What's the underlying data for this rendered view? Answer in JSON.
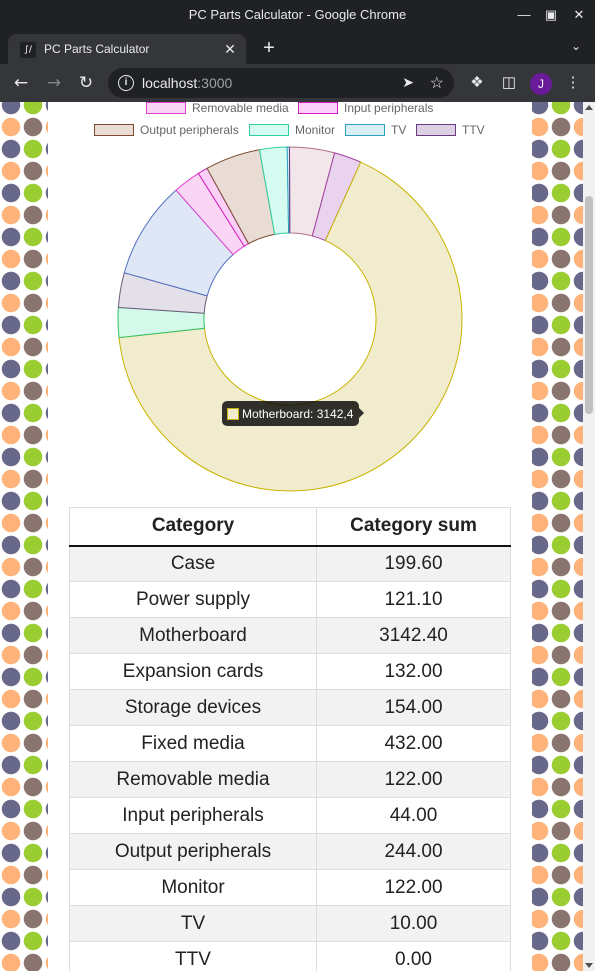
{
  "window": {
    "title": "PC Parts Calculator - Google Chrome"
  },
  "tab": {
    "title": "PC Parts Calculator",
    "favicon": "calc-icon"
  },
  "omnibox": {
    "host": "localhost",
    "port": ":3000"
  },
  "profile": {
    "initial": "J",
    "color": "#6a1b9a"
  },
  "chart_data": {
    "type": "doughnut",
    "categories": [
      "Case",
      "Power supply",
      "Motherboard",
      "Expansion cards",
      "Storage devices",
      "Fixed media",
      "Removable media",
      "Input peripherals",
      "Output peripherals",
      "Monitor",
      "TV",
      "TTV"
    ],
    "values": [
      199.6,
      121.1,
      3142.4,
      132.0,
      154.0,
      432.0,
      122.0,
      44.0,
      244.0,
      122.0,
      10.0,
      0.0
    ],
    "colors": [
      {
        "fill": "#f3e6ea",
        "border": "#b07080"
      },
      {
        "fill": "#ead3ee",
        "border": "#a040a0"
      },
      {
        "fill": "#f2ecce",
        "border": "#c8b400"
      },
      {
        "fill": "#d4f8ea",
        "border": "#30c060"
      },
      {
        "fill": "#e4e0ea",
        "border": "#6b5a7a"
      },
      {
        "fill": "#dfe6f6",
        "border": "#5070c0"
      },
      {
        "fill": "#fbd6f4",
        "border": "#e040d0"
      },
      {
        "fill": "#fbd0f8",
        "border": "#d020c0"
      },
      {
        "fill": "#e8dcd4",
        "border": "#7b4a30"
      },
      {
        "fill": "#d6fbf0",
        "border": "#30d0a0"
      },
      {
        "fill": "#d6eef4",
        "border": "#30a0c0"
      },
      {
        "fill": "#ddd0e4",
        "border": "#6a3a80"
      }
    ],
    "legend_visible": [
      "Removable media",
      "Input peripherals",
      "Output peripherals",
      "Monitor",
      "TV",
      "TTV"
    ],
    "legend_placement": "top",
    "tooltip": "Motherboard: 3142,4"
  },
  "table": {
    "headers": [
      "Category",
      "Category sum"
    ],
    "rows": [
      [
        "Case",
        "199.60"
      ],
      [
        "Power supply",
        "121.10"
      ],
      [
        "Motherboard",
        "3142.40"
      ],
      [
        "Expansion cards",
        "132.00"
      ],
      [
        "Storage devices",
        "154.00"
      ],
      [
        "Fixed media",
        "432.00"
      ],
      [
        "Removable media",
        "122.00"
      ],
      [
        "Input peripherals",
        "44.00"
      ],
      [
        "Output peripherals",
        "244.00"
      ],
      [
        "Monitor",
        "122.00"
      ],
      [
        "TV",
        "10.00"
      ],
      [
        "TTV",
        "0.00"
      ]
    ]
  }
}
